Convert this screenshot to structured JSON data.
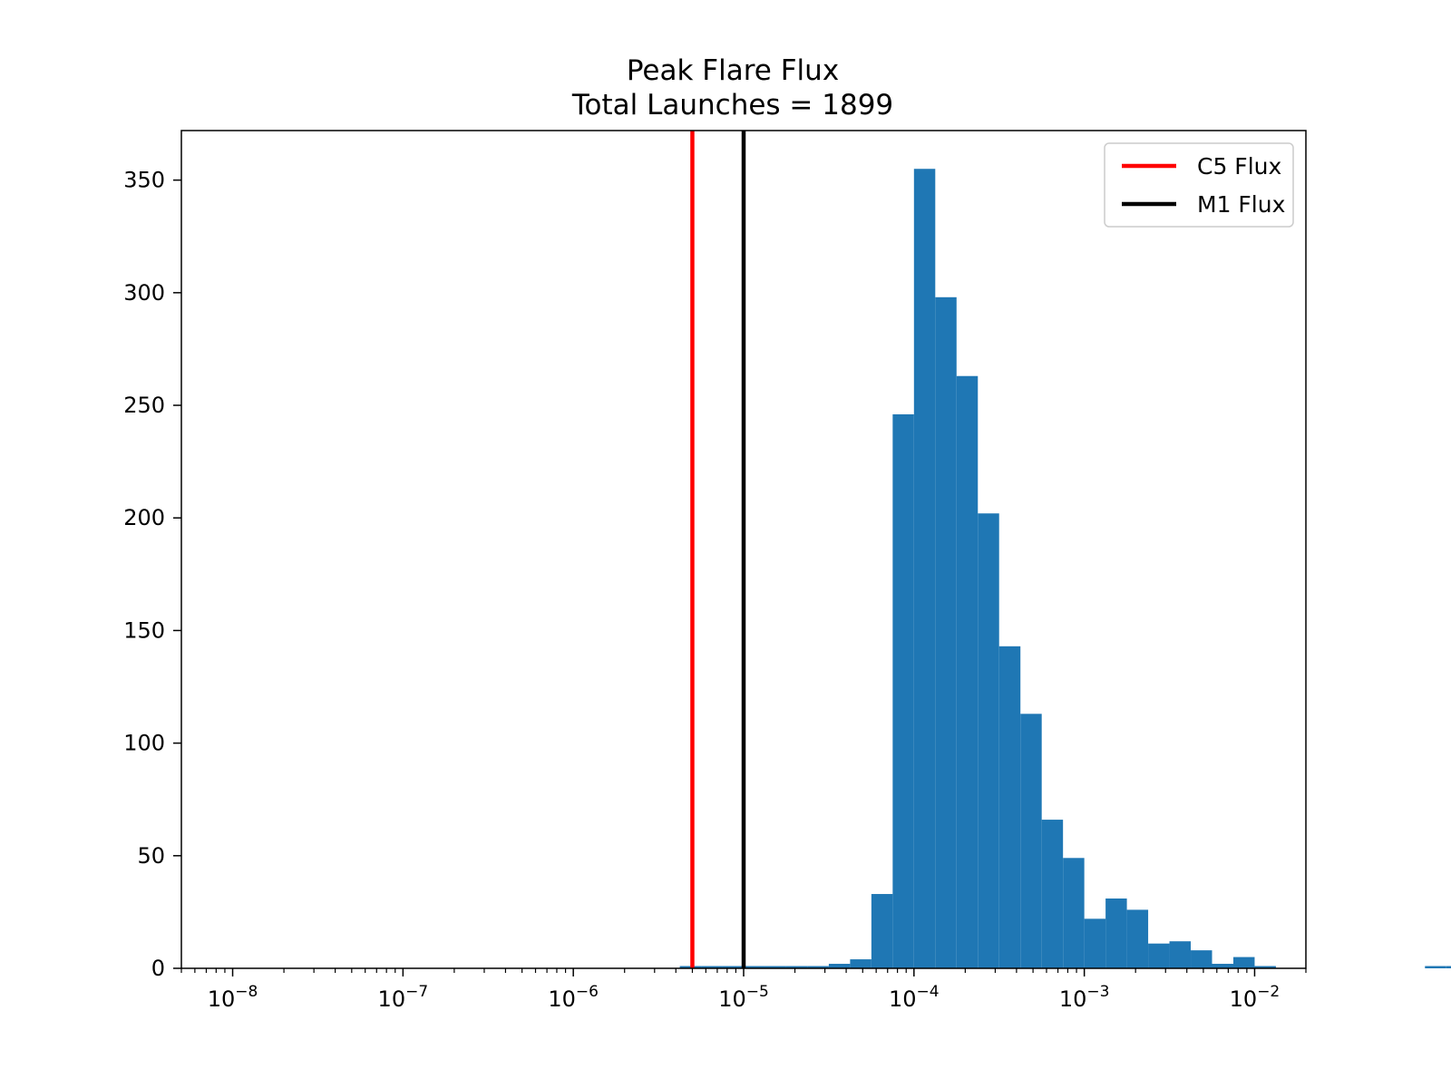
{
  "chart_data": {
    "type": "bar",
    "title": "Peak Flare Flux",
    "subtitle": "Total Launches = 1899",
    "xlabel": "",
    "ylabel": "",
    "xscale": "log",
    "xlim": [
      5e-09,
      0.02
    ],
    "ylim": [
      0,
      372
    ],
    "grid": false,
    "legend_position": "top-right",
    "bar_color": "#1f77b4",
    "x_ticks": [
      {
        "value": 1e-08,
        "base": "10",
        "exp": "−8"
      },
      {
        "value": 1e-07,
        "base": "10",
        "exp": "−7"
      },
      {
        "value": 1e-06,
        "base": "10",
        "exp": "−6"
      },
      {
        "value": 1e-05,
        "base": "10",
        "exp": "−5"
      },
      {
        "value": 0.0001,
        "base": "10",
        "exp": "−4"
      },
      {
        "value": 0.001,
        "base": "10",
        "exp": "−3"
      },
      {
        "value": 0.01,
        "base": "10",
        "exp": "−2"
      }
    ],
    "y_ticks": [
      0,
      50,
      100,
      150,
      200,
      250,
      300,
      350
    ],
    "bins": {
      "log_start": -8,
      "log_step": 0.125,
      "counts": [
        0,
        0,
        0,
        0,
        0,
        0,
        0,
        0,
        0,
        0,
        0,
        0,
        0,
        0,
        0,
        0,
        0,
        0,
        0,
        0,
        0,
        1,
        1,
        1,
        1,
        1,
        1,
        1,
        2,
        4,
        33,
        246,
        355,
        298,
        263,
        202,
        143,
        113,
        66,
        49,
        22,
        31,
        26,
        11,
        12,
        8,
        2,
        5,
        1,
        0,
        0,
        0,
        0,
        0,
        0,
        0,
        1,
        1,
        0,
        0,
        0,
        0,
        0,
        0
      ]
    },
    "vlines": [
      {
        "name": "C5 Flux",
        "x": 5e-06,
        "color": "#ff0000"
      },
      {
        "name": "M1 Flux",
        "x": 1e-05,
        "color": "#000000"
      }
    ]
  }
}
